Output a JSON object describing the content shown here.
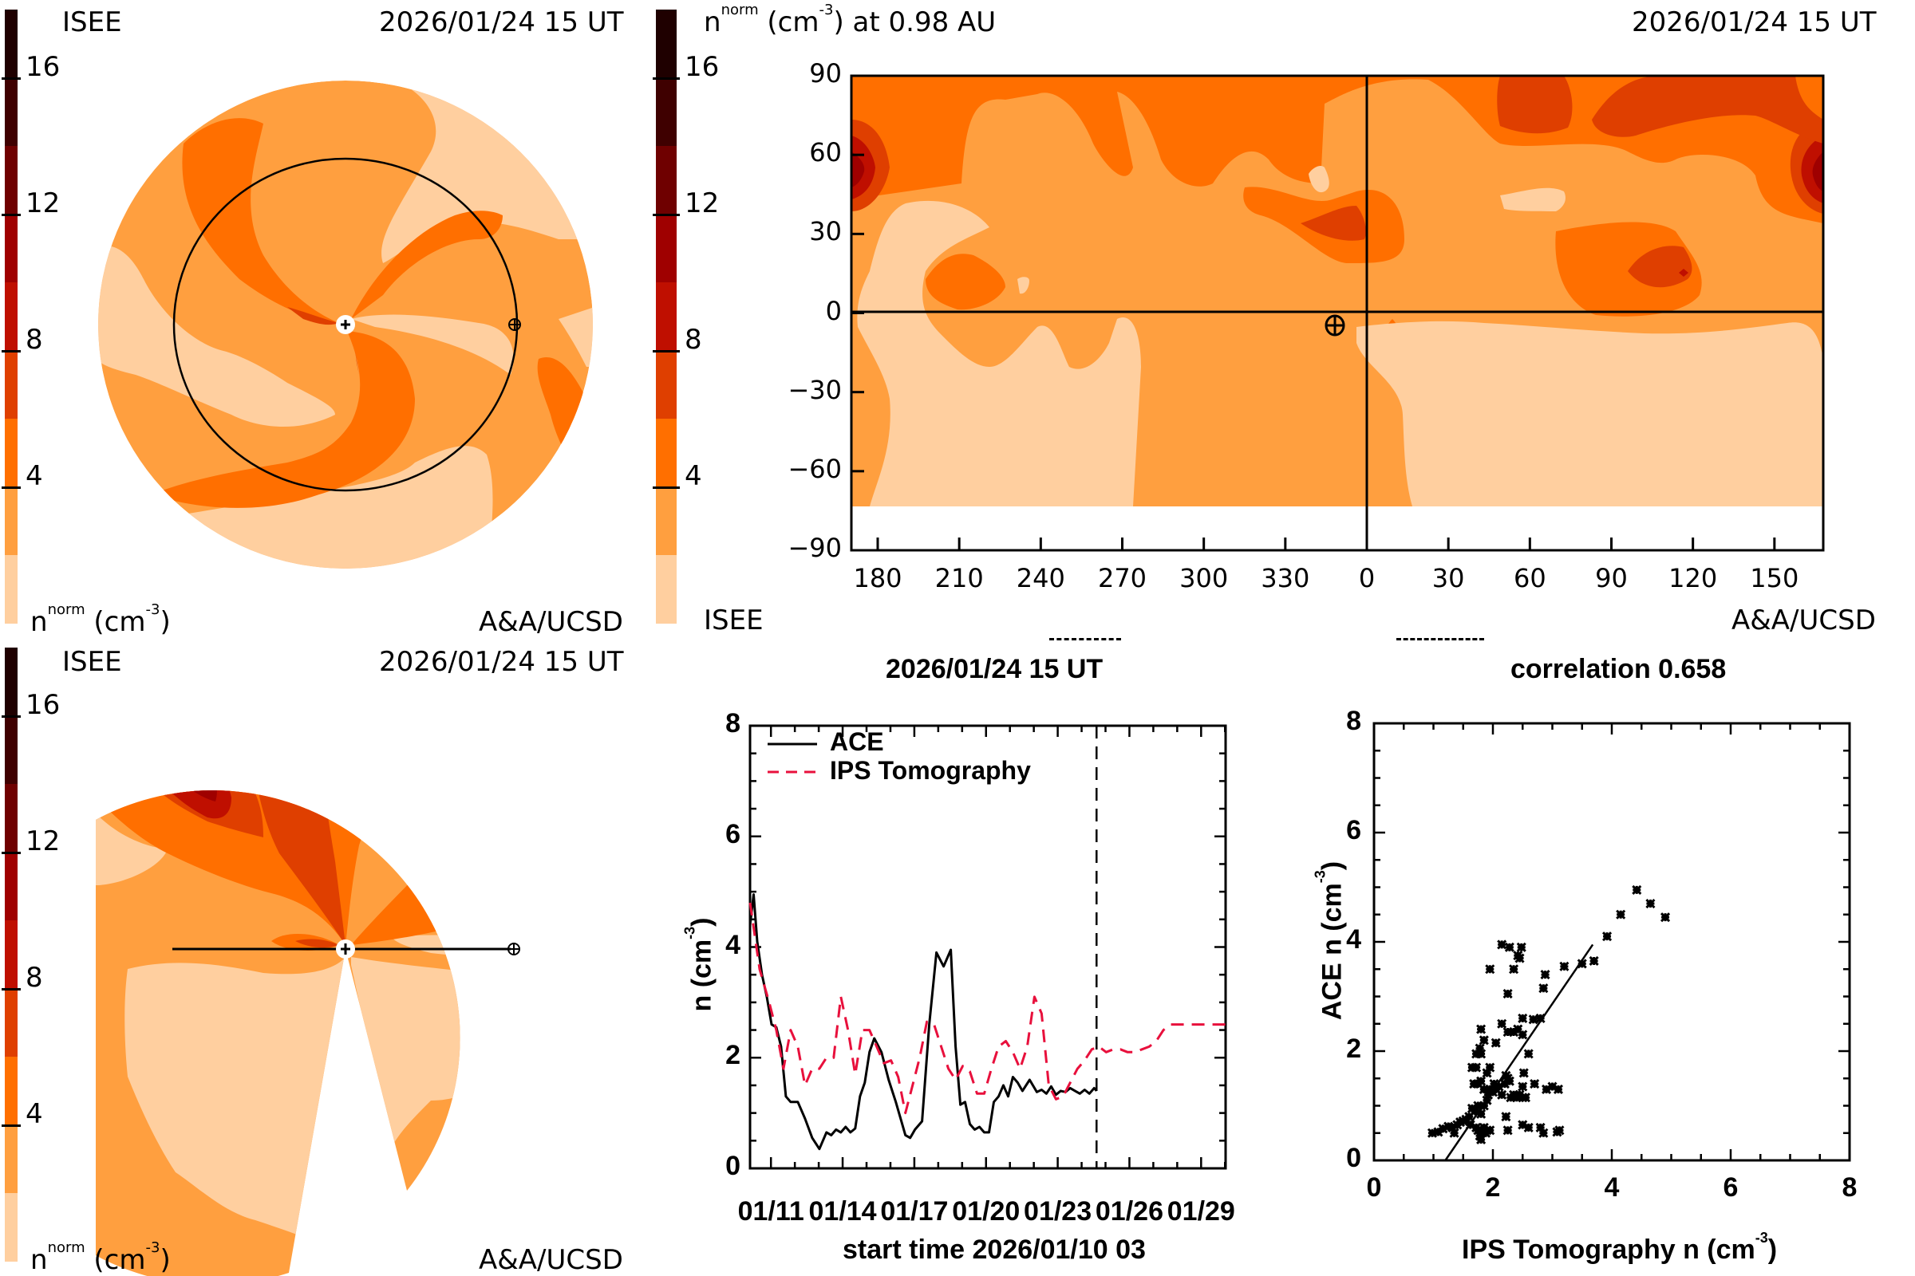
{
  "colorbar": {
    "ticks": [
      "16",
      "12",
      "8",
      "4"
    ],
    "tick_values": [
      16,
      12,
      8,
      4
    ],
    "levels": [
      0,
      2,
      4,
      6,
      8,
      10,
      12,
      14,
      16,
      18
    ],
    "colors": [
      "#FFCF9F",
      "#FF9F3F",
      "#FF6F00",
      "#DF3F00",
      "#BF0F00",
      "#9F0000",
      "#6F0000",
      "#3F0000",
      "#1F0000"
    ]
  },
  "panel_top_left": {
    "org": "ISEE",
    "datetime": "2026/01/24 15 UT",
    "unit_base": "n",
    "unit_sup": "norm",
    "unit_rest": "(cm",
    "unit_exp": "-3",
    "unit_close": ")",
    "credit": "A&A/UCSD",
    "view": "ecliptic"
  },
  "panel_top_right": {
    "title_base": "n",
    "title_sup": "norm",
    "title_rest": "(cm",
    "title_exp": "-3",
    "title_tail": ") at 0.98 AU",
    "datetime": "2026/01/24 15 UT",
    "org": "ISEE",
    "credit": "A&A/UCSD",
    "lat_ticks": [
      "90",
      "60",
      "30",
      "0",
      "−30",
      "−60",
      "−90"
    ],
    "lon_ticks": [
      "180",
      "210",
      "240",
      "270",
      "300",
      "330",
      "0",
      "30",
      "60",
      "90",
      "120",
      "150"
    ]
  },
  "panel_bottom_left": {
    "org": "ISEE",
    "datetime": "2026/01/24 15 UT",
    "unit_base": "n",
    "unit_sup": "norm",
    "unit_rest": "(cm",
    "unit_exp": "-3",
    "unit_close": ")",
    "credit": "A&A/UCSD",
    "view": "meridional"
  },
  "chart_data": [
    {
      "type": "line",
      "title": "2026/01/24 15 UT",
      "xlabel": "start time 2026/01/10 03",
      "ylabel": "n (cm-3)",
      "ylabel_base": "n (cm",
      "ylabel_exp": "-3",
      "ylabel_close": ")",
      "ylim": [
        0,
        8
      ],
      "yticks": [
        "0",
        "2",
        "4",
        "6",
        "8"
      ],
      "xlim_days": [
        0,
        19.9
      ],
      "xtick_labels": [
        "01/11",
        "01/14",
        "01/17",
        "01/20",
        "01/23",
        "01/26",
        "01/29"
      ],
      "xtick_days": [
        0.875,
        3.875,
        6.875,
        9.875,
        12.875,
        15.875,
        18.875
      ],
      "current_time_day": 14.5,
      "legend": [
        {
          "name": "ACE",
          "style": "solid",
          "color": "#000000"
        },
        {
          "name": "IPS Tomography",
          "style": "dashed",
          "color": "#E8103C"
        }
      ],
      "series": [
        {
          "name": "ACE",
          "x_days": [
            0,
            0.15,
            0.3,
            0.5,
            0.7,
            0.9,
            1.1,
            1.3,
            1.5,
            1.7,
            2.0,
            2.3,
            2.6,
            2.9,
            3.2,
            3.4,
            3.6,
            3.8,
            4.0,
            4.2,
            4.4,
            4.6,
            4.8,
            5.0,
            5.2,
            5.5,
            5.8,
            6.1,
            6.3,
            6.5,
            6.7,
            6.9,
            7.2,
            7.5,
            7.8,
            8.1,
            8.4,
            8.6,
            8.8,
            9.0,
            9.2,
            9.4,
            9.6,
            9.8,
            10.0,
            10.2,
            10.4,
            10.6,
            10.8,
            11.0,
            11.2,
            11.4,
            11.7,
            12.0,
            12.2,
            12.4,
            12.6,
            12.8,
            13.0,
            13.2,
            13.4,
            13.6,
            13.8,
            14.0,
            14.2,
            14.4,
            14.5
          ],
          "values": [
            4.4,
            4.95,
            4.1,
            3.5,
            3.1,
            2.6,
            2.55,
            2.2,
            1.3,
            1.2,
            1.2,
            0.9,
            0.55,
            0.35,
            0.65,
            0.6,
            0.7,
            0.65,
            0.75,
            0.65,
            0.72,
            1.3,
            1.55,
            2.1,
            2.35,
            2.1,
            1.6,
            1.2,
            0.9,
            0.6,
            0.55,
            0.7,
            0.85,
            2.6,
            3.9,
            3.65,
            3.95,
            2.2,
            1.15,
            1.2,
            0.8,
            0.7,
            0.75,
            0.65,
            0.65,
            1.2,
            1.3,
            1.5,
            1.3,
            1.65,
            1.55,
            1.4,
            1.6,
            1.38,
            1.42,
            1.35,
            1.48,
            1.33,
            1.4,
            1.38,
            1.45,
            1.4,
            1.35,
            1.42,
            1.35,
            1.45,
            1.4
          ]
        },
        {
          "name": "IPS Tomography",
          "x_days": [
            0,
            0.4,
            0.8,
            1.1,
            1.4,
            1.7,
            2.0,
            2.3,
            2.6,
            2.9,
            3.2,
            3.5,
            3.8,
            4.1,
            4.4,
            4.7,
            5.0,
            5.3,
            5.6,
            5.9,
            6.2,
            6.5,
            6.8,
            7.1,
            7.4,
            7.7,
            8.0,
            8.3,
            8.6,
            8.9,
            9.2,
            9.5,
            9.8,
            10.1,
            10.4,
            10.7,
            11.0,
            11.3,
            11.6,
            11.9,
            12.2,
            12.5,
            12.8,
            13.1,
            13.4,
            13.7,
            14.0,
            14.3,
            14.6,
            14.9,
            15.2,
            15.5,
            15.8,
            16.1,
            16.4,
            16.7,
            17.0,
            17.3,
            17.6,
            17.9,
            18.2,
            18.5,
            18.8,
            19.1,
            19.4,
            19.7,
            19.9
          ],
          "values": [
            4.8,
            3.6,
            3.0,
            2.5,
            1.8,
            2.5,
            2.2,
            1.5,
            1.8,
            1.8,
            2.0,
            2.0,
            3.1,
            2.5,
            1.7,
            2.5,
            2.5,
            2.2,
            1.9,
            1.95,
            1.65,
            1.0,
            1.5,
            2.0,
            2.65,
            2.6,
            2.2,
            1.8,
            1.6,
            1.85,
            1.75,
            1.35,
            1.35,
            1.8,
            2.2,
            2.3,
            2.1,
            1.8,
            2.2,
            3.1,
            2.8,
            1.5,
            1.25,
            1.3,
            1.55,
            1.8,
            1.95,
            2.15,
            2.2,
            2.1,
            2.15,
            2.15,
            2.1,
            2.1,
            2.15,
            2.2,
            2.3,
            2.5,
            2.6,
            2.6,
            2.6,
            2.6,
            2.6,
            2.6,
            2.6,
            2.6,
            2.6
          ]
        }
      ]
    },
    {
      "type": "scatter",
      "title": "correlation 0.658",
      "correlation": 0.658,
      "xlabel": "IPS Tomography n (cm-3)",
      "xlabel_base": "IPS Tomography n (cm",
      "xlabel_exp": "-3",
      "xlabel_close": ")",
      "ylabel": "ACE n (cm-3)",
      "ylabel_base": "ACE n (cm",
      "ylabel_exp": "-3",
      "ylabel_close": ")",
      "xlim": [
        0,
        8
      ],
      "ylim": [
        0,
        8
      ],
      "xticks": [
        "0",
        "2",
        "4",
        "6",
        "8"
      ],
      "yticks": [
        "0",
        "2",
        "4",
        "6",
        "8"
      ],
      "fit_line": {
        "x": [
          1.2,
          3.68
        ],
        "y": [
          0.0,
          3.95
        ]
      },
      "points": [
        [
          0.98,
          0.5
        ],
        [
          1.08,
          0.52
        ],
        [
          1.16,
          0.58
        ],
        [
          1.25,
          0.62
        ],
        [
          1.32,
          0.6
        ],
        [
          1.35,
          0.5
        ],
        [
          1.4,
          0.65
        ],
        [
          1.45,
          0.7
        ],
        [
          1.5,
          0.72
        ],
        [
          1.55,
          0.75
        ],
        [
          1.6,
          0.8
        ],
        [
          1.62,
          0.65
        ],
        [
          1.65,
          0.95
        ],
        [
          1.7,
          0.9
        ],
        [
          1.72,
          0.6
        ],
        [
          1.75,
          0.55
        ],
        [
          1.78,
          0.45
        ],
        [
          1.8,
          0.38
        ],
        [
          1.82,
          0.52
        ],
        [
          1.85,
          0.6
        ],
        [
          1.88,
          0.5
        ],
        [
          1.9,
          0.55
        ],
        [
          1.95,
          0.55
        ],
        [
          1.75,
          1.0
        ],
        [
          1.8,
          0.85
        ],
        [
          1.85,
          1.0
        ],
        [
          1.9,
          1.1
        ],
        [
          1.92,
          1.2
        ],
        [
          1.95,
          1.3
        ],
        [
          2.0,
          1.25
        ],
        [
          2.02,
          1.4
        ],
        [
          2.05,
          1.3
        ],
        [
          2.1,
          1.35
        ],
        [
          2.15,
          1.2
        ],
        [
          2.2,
          1.4
        ],
        [
          2.22,
          1.55
        ],
        [
          2.25,
          1.5
        ],
        [
          2.28,
          1.45
        ],
        [
          2.3,
          1.15
        ],
        [
          2.35,
          1.2
        ],
        [
          2.4,
          1.15
        ],
        [
          2.45,
          1.2
        ],
        [
          2.5,
          1.15
        ],
        [
          2.5,
          1.35
        ],
        [
          2.52,
          1.6
        ],
        [
          2.55,
          1.15
        ],
        [
          1.68,
          1.4
        ],
        [
          1.75,
          1.4
        ],
        [
          1.8,
          1.45
        ],
        [
          1.85,
          1.3
        ],
        [
          1.65,
          1.7
        ],
        [
          1.72,
          1.7
        ],
        [
          1.9,
          1.6
        ],
        [
          1.95,
          1.7
        ],
        [
          1.72,
          1.95
        ],
        [
          1.78,
          2.05
        ],
        [
          1.8,
          1.95
        ],
        [
          1.85,
          2.2
        ],
        [
          1.8,
          2.4
        ],
        [
          2.05,
          2.15
        ],
        [
          2.15,
          2.5
        ],
        [
          2.25,
          2.35
        ],
        [
          2.35,
          2.35
        ],
        [
          2.42,
          2.4
        ],
        [
          2.5,
          2.3
        ],
        [
          2.6,
          1.95
        ],
        [
          2.5,
          2.6
        ],
        [
          2.68,
          2.58
        ],
        [
          2.8,
          2.6
        ],
        [
          2.7,
          1.4
        ],
        [
          2.9,
          1.3
        ],
        [
          3.0,
          1.35
        ],
        [
          3.1,
          1.3
        ],
        [
          2.22,
          0.8
        ],
        [
          2.25,
          0.55
        ],
        [
          2.5,
          0.65
        ],
        [
          2.6,
          0.6
        ],
        [
          2.8,
          0.6
        ],
        [
          2.85,
          0.5
        ],
        [
          3.08,
          0.52
        ],
        [
          3.12,
          0.55
        ],
        [
          1.95,
          3.5
        ],
        [
          2.15,
          3.95
        ],
        [
          2.28,
          3.9
        ],
        [
          2.48,
          3.9
        ],
        [
          2.42,
          3.75
        ],
        [
          2.45,
          3.7
        ],
        [
          2.35,
          3.5
        ],
        [
          2.25,
          3.05
        ],
        [
          2.88,
          3.4
        ],
        [
          2.85,
          3.15
        ],
        [
          3.2,
          3.55
        ],
        [
          3.5,
          3.6
        ],
        [
          3.7,
          3.65
        ],
        [
          3.92,
          4.1
        ],
        [
          4.15,
          4.5
        ],
        [
          4.42,
          4.95
        ],
        [
          4.65,
          4.7
        ],
        [
          4.9,
          4.45
        ]
      ]
    }
  ]
}
